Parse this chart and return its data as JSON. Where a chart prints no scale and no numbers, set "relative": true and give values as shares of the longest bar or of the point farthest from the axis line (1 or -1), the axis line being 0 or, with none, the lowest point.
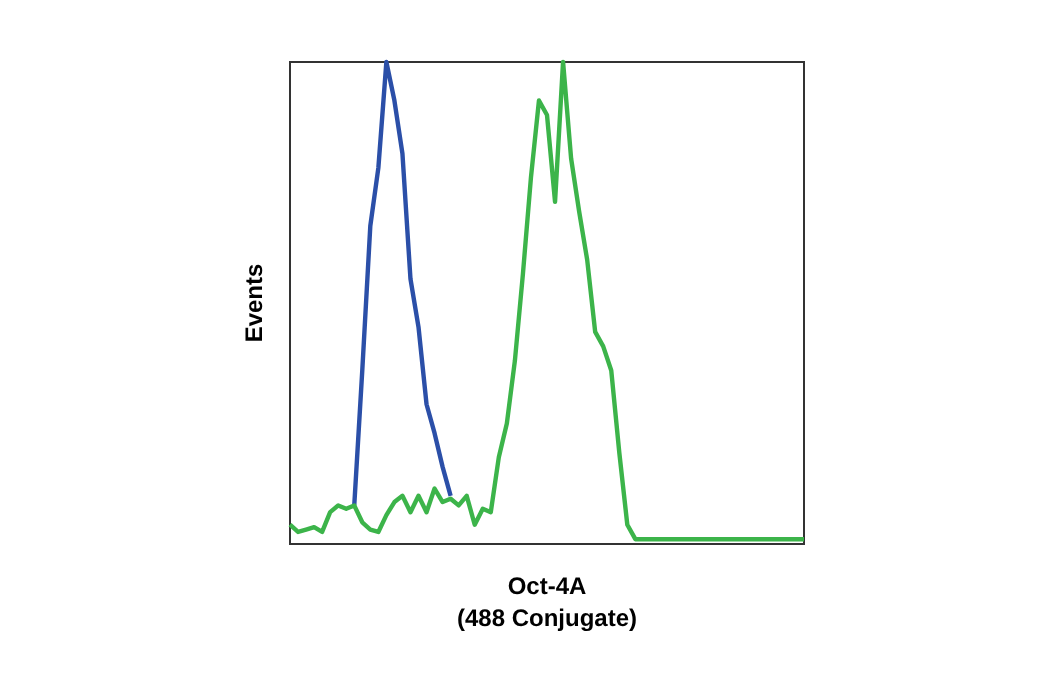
{
  "chart_data": {
    "type": "line",
    "relative": true,
    "xlabel": "Oct-4A\n(488 Conjugate)",
    "ylabel": "Events",
    "marker": "none",
    "line_style": "solid",
    "categories": [
      null,
      null,
      null,
      null,
      null,
      null,
      null,
      null,
      null,
      null,
      null,
      null,
      null,
      null,
      null,
      null,
      null,
      null,
      null,
      null,
      null,
      null,
      null,
      null,
      null,
      null,
      null,
      null,
      null,
      null,
      null,
      null,
      null,
      null,
      null,
      null,
      null,
      null,
      null,
      null,
      null,
      null,
      null,
      null,
      null,
      null,
      null,
      null,
      null,
      null,
      null,
      null,
      null,
      null,
      null,
      null,
      null,
      null,
      null,
      null,
      null,
      null,
      null,
      null,
      null
    ],
    "series": [
      {
        "color": "#2b4fa8",
        "values": [
          null,
          null,
          null,
          null,
          null,
          null,
          null,
          null,
          0.08,
          0.36,
          0.66,
          0.78,
          1.0,
          0.92,
          0.81,
          0.55,
          0.45,
          0.29,
          0.23,
          0.16,
          0.1,
          null,
          null,
          null,
          null,
          null,
          null,
          null,
          null,
          null,
          null,
          null,
          null,
          null,
          null,
          null,
          null,
          null,
          null,
          null,
          null,
          null,
          null,
          null,
          null,
          null,
          null,
          null,
          null,
          null,
          null,
          null,
          null,
          null,
          null,
          null,
          null,
          null,
          null,
          null,
          null,
          null,
          null,
          null,
          null
        ]
      },
      {
        "color": "#3cb44a",
        "values": [
          0.04,
          0.025,
          0.03,
          0.035,
          0.025,
          0.066,
          0.08,
          0.073,
          0.08,
          0.045,
          0.03,
          0.025,
          0.06,
          0.087,
          0.1,
          0.066,
          0.1,
          0.066,
          0.115,
          0.087,
          0.094,
          0.08,
          0.1,
          0.04,
          0.073,
          0.066,
          0.18,
          0.25,
          0.38,
          0.56,
          0.76,
          0.92,
          0.89,
          0.71,
          1.0,
          0.8,
          0.69,
          0.59,
          0.44,
          0.41,
          0.36,
          0.19,
          0.04,
          0.01,
          0.01,
          0.01,
          0.01,
          0.01,
          0.01,
          0.01,
          0.01,
          0.01,
          0.01,
          0.01,
          0.01,
          0.01,
          0.01,
          0.01,
          0.01,
          0.01,
          0.01,
          0.01,
          0.01,
          0.01,
          0.01
        ]
      }
    ]
  }
}
